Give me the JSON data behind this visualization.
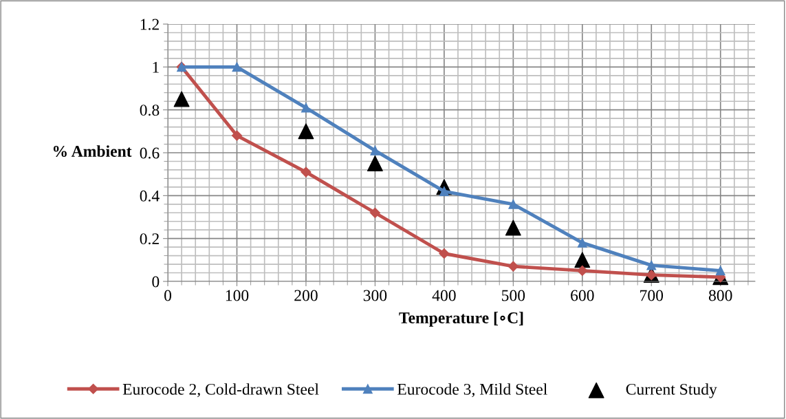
{
  "chart_data": {
    "type": "line",
    "xlabel": "Temperature [∘C]",
    "ylabel": "% Ambient",
    "x": [
      20,
      100,
      200,
      300,
      400,
      500,
      600,
      700,
      800
    ],
    "series": [
      {
        "name": "Eurocode 2, Cold-drawn Steel",
        "color": "#c0504d",
        "marker": "diamond",
        "values": [
          1.0,
          0.68,
          0.51,
          0.32,
          0.13,
          0.07,
          0.05,
          0.03,
          0.02
        ]
      },
      {
        "name": "Eurocode 3, Mild Steel",
        "color": "#4f81bd",
        "marker": "triangle",
        "values": [
          1.0,
          1.0,
          0.81,
          0.61,
          0.42,
          0.36,
          0.18,
          0.075,
          0.05
        ]
      },
      {
        "name": "Current Study",
        "type": "scatter",
        "color": "#000000",
        "marker": "triangle",
        "x": [
          20,
          200,
          300,
          400,
          500,
          600,
          700,
          800
        ],
        "values": [
          0.85,
          0.7,
          0.55,
          0.44,
          0.25,
          0.1,
          0.03,
          0.02
        ]
      }
    ],
    "xlim": [
      0,
      850
    ],
    "xticks": [
      0,
      100,
      200,
      300,
      400,
      500,
      600,
      700,
      800
    ],
    "ylim": [
      0,
      1.2
    ],
    "yticks": [
      0,
      0.2,
      0.4,
      0.6,
      0.8,
      1,
      1.2
    ],
    "grid": true,
    "legend": "bottom"
  }
}
